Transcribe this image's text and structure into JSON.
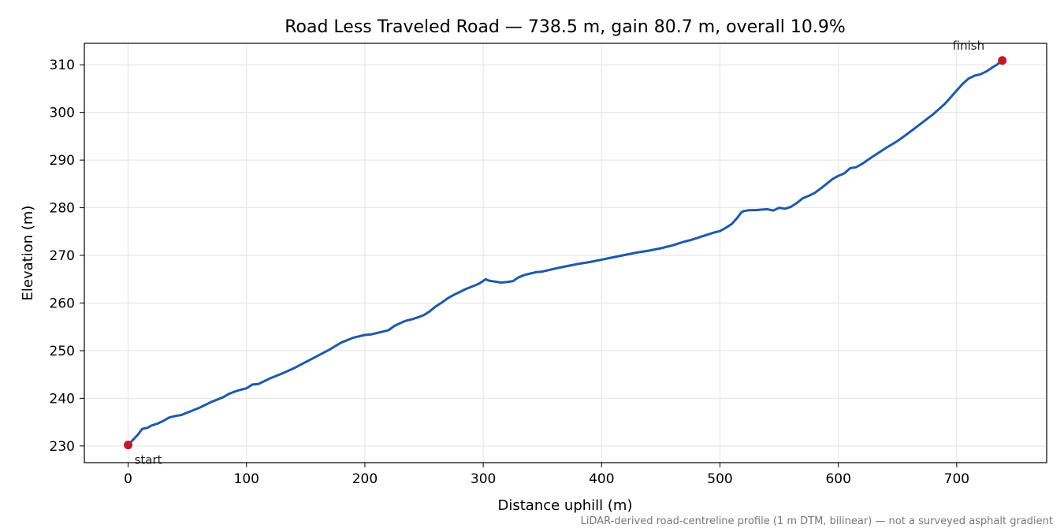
{
  "chart_data": {
    "type": "line",
    "title": "Road Less Traveled Road — 738.5 m, gain 80.7 m, overall 10.9%",
    "xlabel": "Distance uphill (m)",
    "ylabel": "Elevation (m)",
    "xlim": [
      -37,
      776
    ],
    "ylim": [
      226.5,
      314.5
    ],
    "xticks": [
      0,
      100,
      200,
      300,
      400,
      500,
      600,
      700
    ],
    "yticks": [
      230,
      240,
      250,
      260,
      270,
      280,
      290,
      300,
      310
    ],
    "grid": true,
    "line_color": "#1f5aa8",
    "marker_color": "#c0182c",
    "series": [
      {
        "x": [
          0,
          3,
          8,
          12,
          16,
          20,
          25,
          30,
          35,
          40,
          45,
          50,
          55,
          60,
          65,
          70,
          75,
          80,
          85,
          90,
          95,
          100,
          105,
          110,
          115,
          120,
          130,
          140,
          150,
          160,
          170,
          180,
          190,
          200,
          205,
          210,
          215,
          220,
          225,
          230,
          235,
          240,
          245,
          250,
          255,
          260,
          265,
          270,
          275,
          280,
          285,
          290,
          295,
          298,
          302,
          305,
          310,
          315,
          320,
          325,
          330,
          335,
          340,
          345,
          350,
          355,
          360,
          370,
          380,
          390,
          400,
          410,
          420,
          430,
          440,
          450,
          460,
          465,
          470,
          475,
          480,
          485,
          490,
          495,
          500,
          505,
          510,
          515,
          518,
          520,
          525,
          530,
          535,
          540,
          545,
          550,
          555,
          560,
          565,
          570,
          575,
          580,
          585,
          590,
          595,
          600,
          605,
          610,
          615,
          620,
          630,
          640,
          650,
          660,
          670,
          680,
          690,
          695,
          700,
          705,
          710,
          715,
          720,
          725,
          730,
          735,
          738.5
        ],
        "y": [
          230.2,
          231.0,
          232.3,
          233.6,
          233.8,
          234.3,
          234.7,
          235.3,
          236.0,
          236.3,
          236.5,
          237.0,
          237.5,
          238.0,
          238.6,
          239.2,
          239.7,
          240.2,
          240.9,
          241.4,
          241.8,
          242.1,
          242.9,
          243.0,
          243.6,
          244.2,
          245.2,
          246.3,
          247.6,
          248.9,
          250.2,
          251.7,
          252.7,
          253.3,
          253.4,
          253.7,
          254.0,
          254.3,
          255.2,
          255.8,
          256.3,
          256.6,
          257.0,
          257.5,
          258.3,
          259.3,
          260.1,
          261.0,
          261.7,
          262.3,
          262.9,
          263.4,
          263.9,
          264.3,
          265.0,
          264.7,
          264.5,
          264.3,
          264.4,
          264.6,
          265.4,
          265.9,
          266.2,
          266.5,
          266.6,
          266.9,
          267.2,
          267.7,
          268.2,
          268.6,
          269.1,
          269.6,
          270.1,
          270.6,
          271.0,
          271.5,
          272.1,
          272.5,
          272.9,
          273.2,
          273.6,
          274.0,
          274.4,
          274.8,
          275.1,
          275.8,
          276.6,
          278.0,
          279.0,
          279.3,
          279.5,
          279.5,
          279.6,
          279.7,
          279.4,
          280.0,
          279.8,
          280.2,
          281.0,
          282.0,
          282.5,
          283.1,
          284.0,
          285.0,
          286.0,
          286.7,
          287.2,
          288.3,
          288.5,
          289.2,
          290.9,
          292.5,
          294.0,
          295.8,
          297.7,
          299.6,
          301.8,
          303.2,
          304.6,
          306.0,
          307.1,
          307.7,
          308.0,
          308.6,
          309.4,
          310.2,
          310.9
        ]
      }
    ],
    "annotations": {
      "start": {
        "label": "start",
        "x": 0,
        "y": 230.2
      },
      "finish": {
        "label": "finish",
        "x": 738.5,
        "y": 310.9
      }
    },
    "footnote": "LiDAR-derived road-centreline profile (1 m DTM, bilinear) — not a surveyed asphalt gradient"
  }
}
